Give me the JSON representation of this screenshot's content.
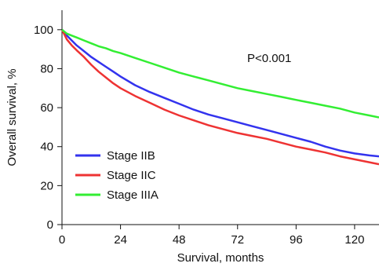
{
  "chart_data": {
    "type": "line",
    "title": "",
    "xlabel": "Survival, months",
    "ylabel": "Overall survival, %",
    "xlim": [
      0,
      130
    ],
    "ylim": [
      0,
      110
    ],
    "xticks": [
      0,
      24,
      48,
      72,
      96,
      120
    ],
    "yticks": [
      0,
      20,
      40,
      60,
      80,
      100
    ],
    "grid": false,
    "legend": "bottom-left",
    "annotation": "P<0.001",
    "series": [
      {
        "name": "Stage IIB",
        "color": "#3333ee",
        "x": [
          0,
          2,
          4,
          6,
          9,
          12,
          15,
          18,
          21,
          24,
          30,
          36,
          42,
          48,
          54,
          60,
          66,
          72,
          78,
          84,
          90,
          96,
          102,
          108,
          114,
          120,
          126,
          130
        ],
        "y": [
          100,
          97,
          94.5,
          92,
          89,
          86,
          83.5,
          81,
          78.5,
          76,
          71.5,
          68,
          65,
          62,
          59,
          56.5,
          54.5,
          52.5,
          50.5,
          48.5,
          46.5,
          44.5,
          42.5,
          40,
          38,
          36.5,
          35.5,
          35
        ]
      },
      {
        "name": "Stage IIC",
        "color": "#ee3333",
        "x": [
          0,
          2,
          4,
          6,
          9,
          12,
          15,
          18,
          21,
          24,
          30,
          36,
          42,
          48,
          54,
          60,
          66,
          72,
          78,
          84,
          90,
          96,
          102,
          108,
          114,
          120,
          126,
          130
        ],
        "y": [
          100,
          95,
          92,
          89.5,
          86,
          82,
          78.5,
          75.5,
          72.5,
          70,
          66,
          62.5,
          59,
          56,
          53.5,
          51,
          49,
          47,
          45.5,
          44,
          42,
          40,
          38.5,
          37,
          35,
          33.5,
          32,
          31
        ]
      },
      {
        "name": "Stage IIIA",
        "color": "#33ee33",
        "x": [
          0,
          2,
          4,
          6,
          9,
          12,
          15,
          18,
          21,
          24,
          30,
          36,
          42,
          48,
          54,
          60,
          66,
          72,
          78,
          84,
          90,
          96,
          102,
          108,
          114,
          120,
          126,
          130
        ],
        "y": [
          100,
          98,
          97,
          96,
          94.5,
          93,
          91.5,
          90.5,
          89,
          88,
          85.5,
          83,
          80.5,
          78,
          76,
          74,
          72,
          70,
          68.5,
          67,
          65.5,
          64,
          62.5,
          61,
          59.5,
          57.5,
          56,
          55
        ]
      }
    ]
  }
}
